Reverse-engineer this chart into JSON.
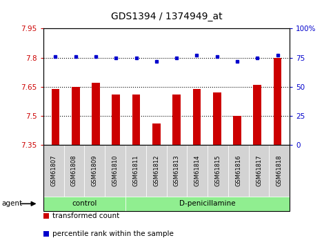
{
  "title": "GDS1394 / 1374949_at",
  "samples": [
    "GSM61807",
    "GSM61808",
    "GSM61809",
    "GSM61810",
    "GSM61811",
    "GSM61812",
    "GSM61813",
    "GSM61814",
    "GSM61815",
    "GSM61816",
    "GSM61817",
    "GSM61818"
  ],
  "bar_values": [
    7.64,
    7.65,
    7.67,
    7.61,
    7.61,
    7.46,
    7.61,
    7.64,
    7.62,
    7.5,
    7.66,
    7.8
  ],
  "dot_values": [
    76,
    76,
    76,
    75,
    75,
    72,
    75,
    77,
    76,
    72,
    75,
    77
  ],
  "bar_color": "#cc0000",
  "dot_color": "#0000cc",
  "ylim_left": [
    7.35,
    7.95
  ],
  "ylim_right": [
    0,
    100
  ],
  "yticks_left": [
    7.35,
    7.5,
    7.65,
    7.8,
    7.95
  ],
  "yticks_right": [
    0,
    25,
    50,
    75,
    100
  ],
  "hlines": [
    7.5,
    7.65,
    7.8
  ],
  "groups": [
    {
      "label": "control",
      "start": 0,
      "end": 4
    },
    {
      "label": "D-penicillamine",
      "start": 4,
      "end": 12
    }
  ],
  "legend_items": [
    {
      "label": "transformed count",
      "color": "#cc0000"
    },
    {
      "label": "percentile rank within the sample",
      "color": "#0000cc"
    }
  ],
  "agent_label": "agent",
  "plot_bg": "#ffffff",
  "group_bg": "#90ee90",
  "tick_label_bg": "#d3d3d3"
}
